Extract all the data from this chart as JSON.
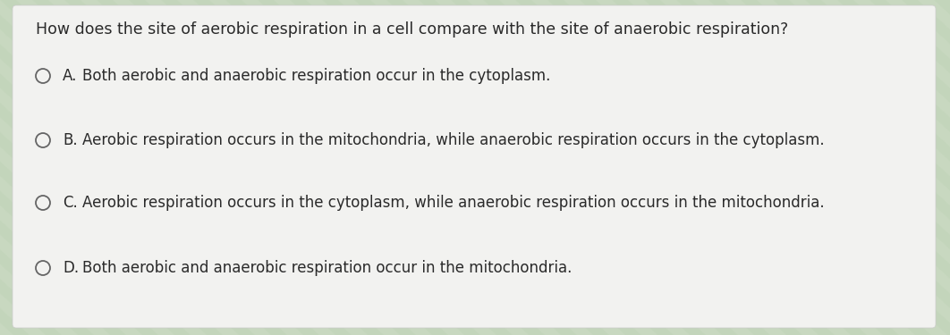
{
  "question": "How does the site of aerobic respiration in a cell compare with the site of anaerobic respiration?",
  "options": [
    {
      "label": "A.",
      "text": "Both aerobic and anaerobic respiration occur in the cytoplasm."
    },
    {
      "label": "B.",
      "text": "Aerobic respiration occurs in the mitochondria, while anaerobic respiration occurs in the cytoplasm."
    },
    {
      "label": "C.",
      "text": "Aerobic respiration occurs in the cytoplasm, while anaerobic respiration occurs in the mitochondria."
    },
    {
      "label": "D.",
      "text": "Both aerobic and anaerobic respiration occur in the mitochondria."
    }
  ],
  "bg_color": "#c8d8c0",
  "card_color": "#f2f2f0",
  "text_color": "#2a2a2a",
  "question_fontsize": 12.5,
  "option_fontsize": 12.0,
  "circle_color": "#666666",
  "stripe_color1": "#c8d8c0",
  "stripe_color2": "#d8e8d0"
}
